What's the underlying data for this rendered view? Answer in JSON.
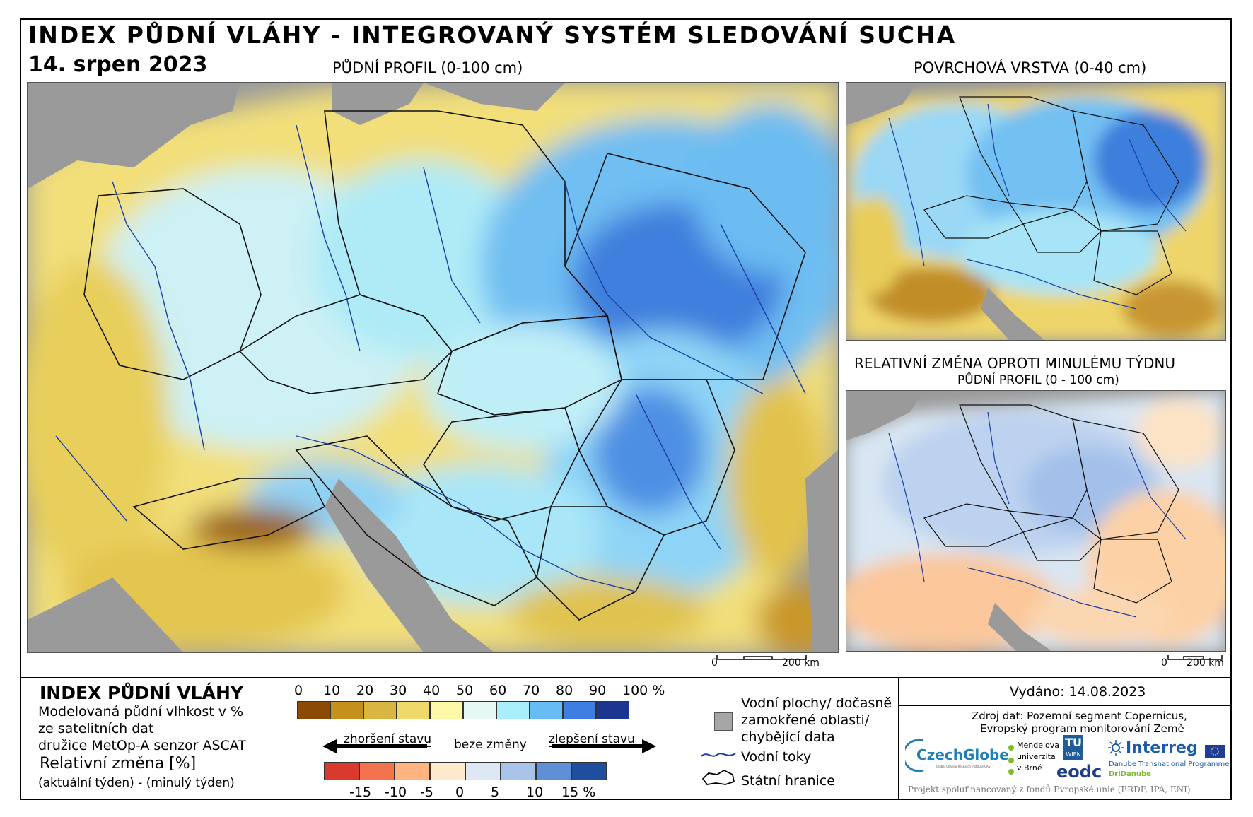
{
  "header": {
    "title": "INDEX PŮDNÍ VLÁHY - INTEGROVANÝ SYSTÉM SLEDOVÁNÍ SUCHA",
    "date": "14. srpen 2023",
    "main_map_title": "PŮDNÍ PROFIL (0-100 cm)",
    "surface_map_title": "POVRCHOVÁ VRSTVA (0-40 cm)",
    "change_map_title": "RELATIVNÍ ZMĚNA OPROTI MINULÉMU TÝDNU",
    "change_map_subtitle": "PŮDNÍ PROFIL (0 - 100 cm)"
  },
  "scalebars": {
    "main": {
      "zero": "0",
      "end": "200 km"
    },
    "small": {
      "zero": "0",
      "end": "200 km"
    }
  },
  "legend": {
    "index_title": "INDEX PŮDNÍ VLÁHY",
    "index_desc_1": "Modelovaná půdní vlhkost v %",
    "index_desc_2": "ze satelitních dat",
    "index_desc_3": "družice MetOp-A senzor ASCAT",
    "change_title": "Relativní změna [%]",
    "change_desc": "(aktuální týden) - (minulý týden)",
    "index_ticks": [
      "0",
      "10",
      "20",
      "30",
      "40",
      "50",
      "60",
      "70",
      "80",
      "90",
      "100 %"
    ],
    "index_colors": [
      "#8c4a07",
      "#c5901c",
      "#d9b642",
      "#eed96a",
      "#fdf7a8",
      "#e6f8f4",
      "#a9eefb",
      "#66bdf4",
      "#3d7ee0",
      "#1b3590"
    ],
    "change_ticks": [
      "-15",
      "-10",
      "-5",
      "0",
      "5",
      "10",
      "15 %"
    ],
    "change_colors": [
      "#d93a2e",
      "#f3734f",
      "#fdb47f",
      "#fde9cc",
      "#dde8f4",
      "#a9c4ea",
      "#5f8fd6",
      "#204e9e"
    ],
    "worse_label": "zhoršení stavu",
    "nochange_label": "beze změny",
    "better_label": "zlepšení stavu",
    "water_label_1": "Vodní plochy/ dočasně",
    "water_label_2": "zamokřené oblasti/",
    "water_label_3": "chybějící data",
    "rivers_label": "Vodní toky",
    "borders_label": "Státní hranice",
    "water_color": "#a6a6a6",
    "river_color": "#1a3fa0"
  },
  "footer": {
    "issued": "Vydáno: 14.08.2023",
    "source_1": "Zdroj dat: Pozemní segment Copernicus,",
    "source_2": "Evropský program monitorování Země",
    "logos": {
      "czechglobe": "CzechGlobe",
      "czechglobe_sub": "Global Change Research Institute CAS",
      "mendel_1": "Mendelova",
      "mendel_2": "univerzita",
      "mendel_3": "v Brně",
      "tu": "TU",
      "tu_sub": "WIEN",
      "eodc": "eodc",
      "interreg": "Interreg",
      "interreg_sub": "Danube Transnational Programme",
      "dridanube": "DriDanube"
    },
    "project": "Projekt spolufinancovaný z fondů Evropské unie (ERDF, IPA, ENI)"
  }
}
